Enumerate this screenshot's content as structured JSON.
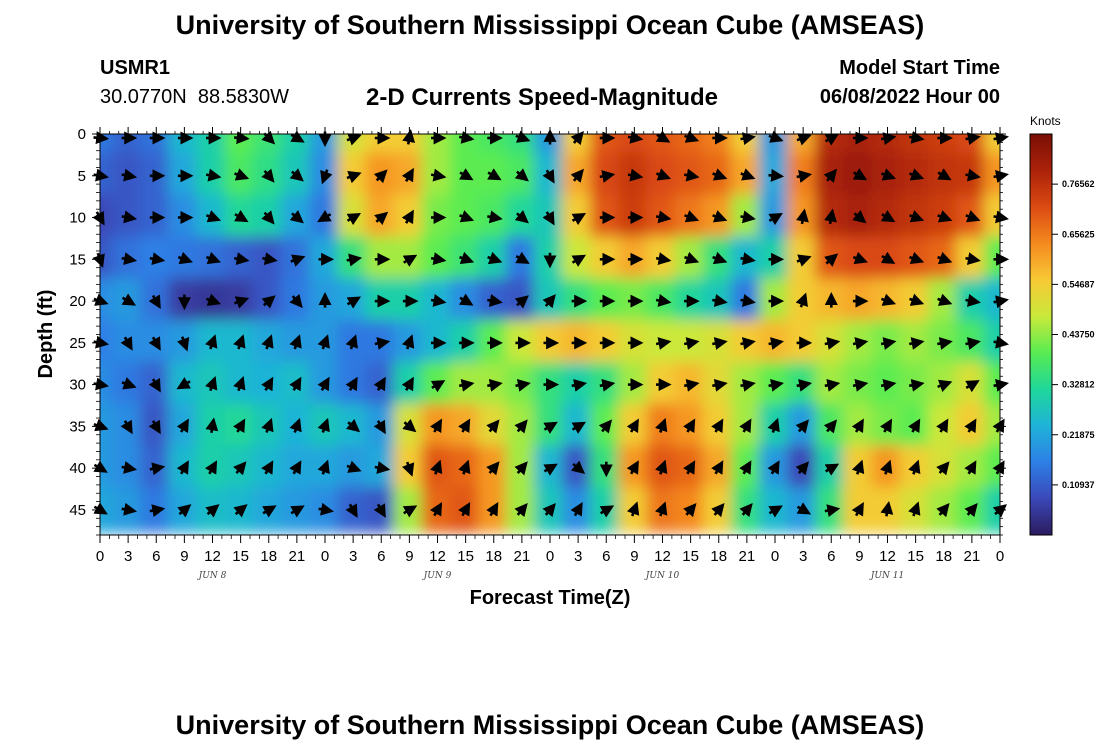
{
  "page": {
    "title": "University of Southern Mississippi Ocean Cube (AMSEAS)",
    "title_repeat": "University of Southern Mississippi Ocean Cube (AMSEAS)",
    "station": "USMR1",
    "coordinates": "30.0770N  88.5830W",
    "subtitle": "2-D Currents Speed-Magnitude",
    "model_start_label": "Model Start Time",
    "model_start_value": "06/08/2022 Hour 00"
  },
  "colors": {
    "scale": [
      "#2b1b5e",
      "#3b48b8",
      "#2d7fe6",
      "#1fb3d8",
      "#1fd79a",
      "#59ec52",
      "#c9e93a",
      "#f7c935",
      "#f58a1f",
      "#db4a12",
      "#ab220a",
      "#7a0f05"
    ],
    "arrow": "#000000",
    "axis": "#000000"
  },
  "chart_data": {
    "type": "heatmap",
    "title": "2-D Currents Speed-Magnitude",
    "xlabel": "Forecast Time(Z)",
    "ylabel": "Depth (ft)",
    "colorbar_label": "Knots",
    "colorbar_ticks": [
      "0.10937",
      "0.21875",
      "0.32812",
      "0.43750",
      "0.54687",
      "0.65625",
      "0.76562"
    ],
    "colorbar_values": [
      0.10937,
      0.21875,
      0.32812,
      0.4375,
      0.54687,
      0.65625,
      0.76562
    ],
    "colorbar_range": [
      0,
      0.875
    ],
    "x_tick_labels": [
      "0",
      "3",
      "6",
      "9",
      "12",
      "15",
      "18",
      "21",
      "0",
      "3",
      "6",
      "9",
      "12",
      "15",
      "18",
      "21",
      "0",
      "3",
      "6",
      "9",
      "12",
      "15",
      "18",
      "21",
      "0",
      "3",
      "6",
      "9",
      "12",
      "15",
      "18",
      "21",
      "0"
    ],
    "x_range_hours": [
      0,
      96
    ],
    "day_labels": [
      "JUN 8",
      "JUN 9",
      "JUN 10",
      "JUN 11"
    ],
    "y_tick_labels": [
      "0",
      "5",
      "10",
      "15",
      "20",
      "25",
      "30",
      "35",
      "40",
      "45"
    ],
    "y_range_ft": [
      0,
      48
    ],
    "arrow_hours": [
      0,
      3,
      6,
      9,
      12,
      15,
      18,
      21,
      24,
      27,
      30,
      33,
      36,
      39,
      42,
      45,
      48,
      51,
      54,
      57,
      60,
      63,
      66,
      69,
      72,
      75,
      78,
      81,
      84,
      87,
      90,
      93,
      96
    ],
    "depths": [
      0,
      5,
      10,
      15,
      20,
      25,
      30,
      35,
      40,
      45
    ],
    "speed_knots": [
      [
        0.15,
        0.12,
        0.14,
        0.25,
        0.3,
        0.4,
        0.36,
        0.3,
        0.2,
        0.5,
        0.55,
        0.55,
        0.45,
        0.4,
        0.38,
        0.35,
        0.2,
        0.55,
        0.7,
        0.72,
        0.7,
        0.68,
        0.65,
        0.55,
        0.2,
        0.6,
        0.78,
        0.8,
        0.78,
        0.76,
        0.74,
        0.72,
        0.55
      ],
      [
        0.12,
        0.1,
        0.12,
        0.22,
        0.3,
        0.38,
        0.34,
        0.28,
        0.18,
        0.55,
        0.62,
        0.6,
        0.45,
        0.4,
        0.4,
        0.38,
        0.25,
        0.6,
        0.72,
        0.75,
        0.72,
        0.7,
        0.68,
        0.6,
        0.22,
        0.65,
        0.8,
        0.82,
        0.8,
        0.78,
        0.76,
        0.75,
        0.62
      ],
      [
        0.08,
        0.1,
        0.12,
        0.18,
        0.25,
        0.32,
        0.3,
        0.22,
        0.15,
        0.5,
        0.6,
        0.55,
        0.42,
        0.4,
        0.38,
        0.32,
        0.28,
        0.55,
        0.7,
        0.74,
        0.7,
        0.66,
        0.62,
        0.45,
        0.2,
        0.62,
        0.78,
        0.8,
        0.78,
        0.76,
        0.74,
        0.7,
        0.55
      ],
      [
        0.1,
        0.14,
        0.16,
        0.15,
        0.14,
        0.12,
        0.1,
        0.14,
        0.22,
        0.35,
        0.45,
        0.45,
        0.4,
        0.36,
        0.3,
        0.15,
        0.3,
        0.48,
        0.55,
        0.6,
        0.55,
        0.45,
        0.35,
        0.25,
        0.3,
        0.55,
        0.7,
        0.72,
        0.72,
        0.7,
        0.68,
        0.55,
        0.4
      ],
      [
        0.18,
        0.2,
        0.14,
        0.06,
        0.05,
        0.06,
        0.1,
        0.15,
        0.2,
        0.22,
        0.3,
        0.3,
        0.25,
        0.18,
        0.12,
        0.1,
        0.28,
        0.35,
        0.4,
        0.42,
        0.38,
        0.32,
        0.28,
        0.15,
        0.45,
        0.55,
        0.58,
        0.6,
        0.58,
        0.55,
        0.45,
        0.3,
        0.25
      ],
      [
        0.16,
        0.18,
        0.18,
        0.2,
        0.25,
        0.25,
        0.22,
        0.2,
        0.2,
        0.15,
        0.15,
        0.2,
        0.25,
        0.3,
        0.4,
        0.48,
        0.55,
        0.58,
        0.55,
        0.5,
        0.48,
        0.48,
        0.5,
        0.55,
        0.58,
        0.55,
        0.5,
        0.45,
        0.42,
        0.45,
        0.42,
        0.38,
        0.3
      ],
      [
        0.18,
        0.15,
        0.12,
        0.25,
        0.28,
        0.25,
        0.24,
        0.26,
        0.2,
        0.15,
        0.12,
        0.3,
        0.4,
        0.45,
        0.45,
        0.42,
        0.35,
        0.3,
        0.35,
        0.45,
        0.55,
        0.58,
        0.52,
        0.45,
        0.4,
        0.35,
        0.45,
        0.42,
        0.4,
        0.42,
        0.45,
        0.5,
        0.4
      ],
      [
        0.2,
        0.18,
        0.1,
        0.22,
        0.3,
        0.32,
        0.28,
        0.24,
        0.28,
        0.25,
        0.2,
        0.5,
        0.62,
        0.6,
        0.52,
        0.45,
        0.35,
        0.25,
        0.4,
        0.55,
        0.65,
        0.62,
        0.55,
        0.45,
        0.3,
        0.2,
        0.38,
        0.45,
        0.42,
        0.4,
        0.48,
        0.55,
        0.45
      ],
      [
        0.2,
        0.18,
        0.12,
        0.25,
        0.3,
        0.28,
        0.25,
        0.22,
        0.22,
        0.2,
        0.22,
        0.55,
        0.7,
        0.68,
        0.62,
        0.45,
        0.25,
        0.1,
        0.35,
        0.62,
        0.7,
        0.68,
        0.6,
        0.4,
        0.2,
        0.08,
        0.3,
        0.55,
        0.62,
        0.55,
        0.5,
        0.45,
        0.4
      ],
      [
        0.22,
        0.2,
        0.15,
        0.22,
        0.26,
        0.25,
        0.22,
        0.2,
        0.18,
        0.12,
        0.1,
        0.45,
        0.68,
        0.7,
        0.62,
        0.45,
        0.28,
        0.18,
        0.3,
        0.55,
        0.66,
        0.64,
        0.55,
        0.35,
        0.25,
        0.2,
        0.35,
        0.55,
        0.55,
        0.5,
        0.45,
        0.4,
        0.3
      ]
    ],
    "direction_deg": [
      [
        95,
        90,
        90,
        90,
        90,
        95,
        135,
        120,
        180,
        70,
        90,
        10,
        90,
        100,
        90,
        110,
        0,
        40,
        90,
        100,
        120,
        110,
        90,
        80,
        110,
        70,
        60,
        90,
        80,
        100,
        90,
        80,
        80
      ],
      [
        100,
        100,
        90,
        90,
        100,
        110,
        140,
        130,
        200,
        70,
        45,
        30,
        100,
        120,
        120,
        130,
        150,
        40,
        80,
        100,
        110,
        100,
        110,
        110,
        95,
        80,
        40,
        120,
        110,
        110,
        120,
        100,
        80
      ],
      [
        150,
        100,
        90,
        90,
        110,
        120,
        140,
        130,
        240,
        60,
        50,
        30,
        90,
        110,
        100,
        130,
        150,
        60,
        90,
        90,
        100,
        110,
        110,
        100,
        60,
        10,
        10,
        130,
        120,
        110,
        110,
        110,
        100
      ],
      [
        160,
        100,
        100,
        110,
        110,
        100,
        100,
        70,
        90,
        80,
        90,
        60,
        100,
        110,
        110,
        120,
        180,
        60,
        90,
        90,
        100,
        110,
        110,
        100,
        90,
        70,
        50,
        110,
        120,
        110,
        110,
        100,
        90
      ],
      [
        110,
        120,
        150,
        180,
        110,
        70,
        50,
        140,
        0,
        60,
        90,
        90,
        100,
        120,
        100,
        50,
        40,
        90,
        90,
        90,
        100,
        90,
        100,
        100,
        90,
        20,
        0,
        90,
        110,
        110,
        110,
        100,
        80
      ],
      [
        100,
        150,
        150,
        160,
        20,
        20,
        20,
        20,
        20,
        20,
        80,
        20,
        90,
        90,
        90,
        90,
        90,
        90,
        90,
        90,
        80,
        80,
        80,
        80,
        80,
        90,
        80,
        80,
        80,
        80,
        80,
        80,
        100
      ],
      [
        100,
        110,
        150,
        240,
        20,
        20,
        30,
        30,
        30,
        30,
        30,
        30,
        60,
        80,
        80,
        80,
        90,
        80,
        80,
        90,
        90,
        80,
        80,
        80,
        80,
        80,
        80,
        80,
        80,
        80,
        70,
        60,
        80
      ],
      [
        110,
        150,
        150,
        30,
        10,
        30,
        20,
        20,
        20,
        130,
        150,
        130,
        30,
        30,
        40,
        40,
        60,
        60,
        40,
        30,
        20,
        30,
        30,
        30,
        20,
        40,
        40,
        30,
        30,
        30,
        30,
        30,
        30
      ],
      [
        120,
        100,
        80,
        30,
        30,
        40,
        30,
        30,
        20,
        110,
        100,
        160,
        20,
        20,
        40,
        40,
        60,
        130,
        180,
        30,
        20,
        30,
        30,
        30,
        30,
        40,
        60,
        20,
        20,
        20,
        40,
        30,
        30
      ],
      [
        120,
        100,
        80,
        50,
        50,
        50,
        60,
        60,
        100,
        150,
        150,
        60,
        30,
        30,
        30,
        40,
        40,
        30,
        60,
        20,
        20,
        40,
        40,
        40,
        60,
        120,
        80,
        30,
        10,
        20,
        40,
        40,
        50
      ]
    ]
  }
}
